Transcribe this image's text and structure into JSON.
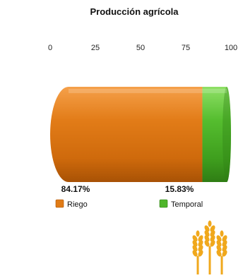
{
  "chart_data": {
    "type": "bar",
    "orientation": "horizontal",
    "stacked": true,
    "title": "Producción agrícola",
    "xlabel": "",
    "ylabel": "",
    "xlim": [
      0,
      100
    ],
    "ticks": [
      0,
      25,
      50,
      75,
      100
    ],
    "tick_labels": [
      "0",
      "25",
      "50",
      "75",
      "100"
    ],
    "grid": true,
    "legend": "bottom",
    "series": [
      {
        "name": "Riego",
        "value": 84.17,
        "label": "84.17%",
        "color": "#e07b16"
      },
      {
        "name": "Temporal",
        "value": 15.83,
        "label": "15.83%",
        "color": "#4fb52a"
      }
    ]
  },
  "decoration": {
    "icon": "wheat-icon",
    "color": "#f0a81c"
  }
}
